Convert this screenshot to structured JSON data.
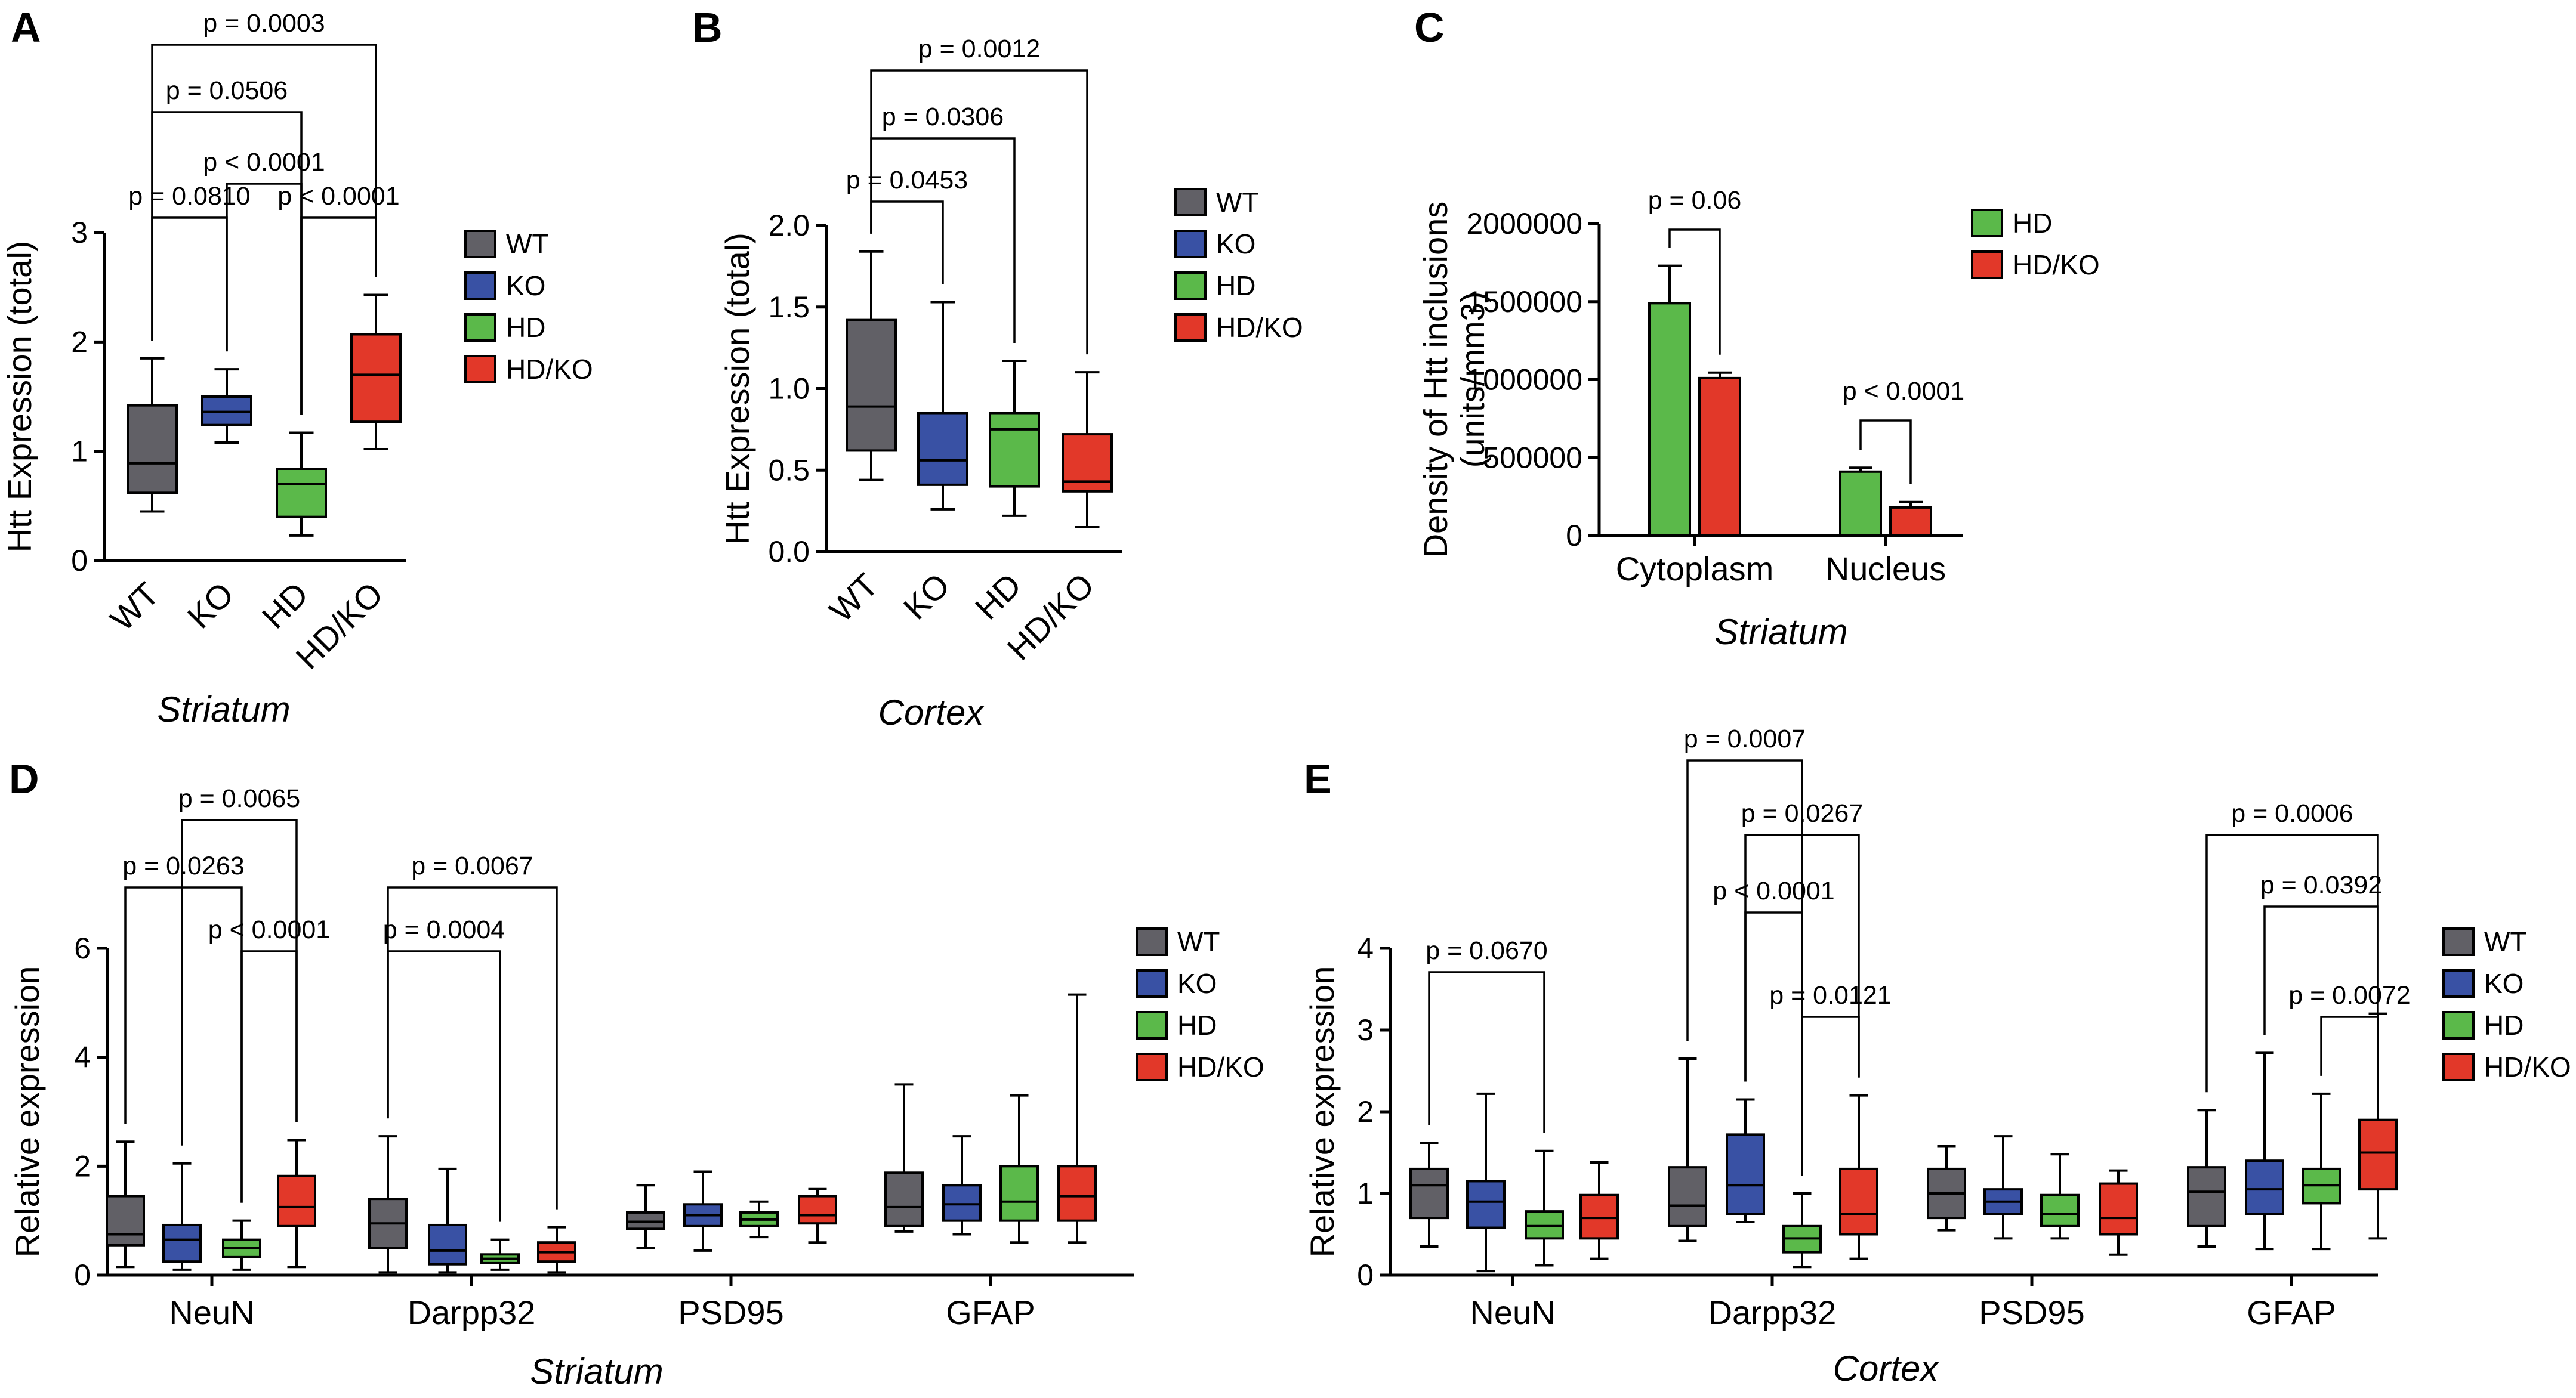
{
  "colors": {
    "WT": "#616066",
    "KO": "#3951a4",
    "HD": "#5bb94a",
    "HD/KO": "#e23829"
  },
  "legend_labels": [
    "WT",
    "KO",
    "HD",
    "HD/KO"
  ],
  "legend_labels_c": [
    "HD",
    "HD/KO"
  ],
  "chart_data": [
    {
      "panel": "A",
      "type": "box",
      "ylabel": "Htt Expression (total)",
      "subtitle": "Striatum",
      "ylim": [
        0,
        3
      ],
      "yticks": [
        0,
        1,
        2,
        3
      ],
      "ytick_labels": [
        "0",
        "1",
        "2",
        "3"
      ],
      "categories": [
        "WT",
        "KO",
        "HD",
        "HD/KO"
      ],
      "boxes": [
        {
          "group": "WT",
          "min": 0.45,
          "q1": 0.62,
          "median": 0.89,
          "q3": 1.42,
          "max": 1.85
        },
        {
          "group": "KO",
          "min": 1.08,
          "q1": 1.24,
          "median": 1.36,
          "q3": 1.5,
          "max": 1.75
        },
        {
          "group": "HD",
          "min": 0.23,
          "q1": 0.4,
          "median": 0.7,
          "q3": 0.84,
          "max": 1.17
        },
        {
          "group": "HD/KO",
          "min": 1.02,
          "q1": 1.27,
          "median": 1.7,
          "q3": 2.07,
          "max": 2.43
        }
      ],
      "comparisons": [
        {
          "a": 0,
          "b": 1,
          "p": "p = 0.0810"
        },
        {
          "a": 2,
          "b": 3,
          "p": "p < 0.0001"
        },
        {
          "a": 1,
          "b": 2,
          "p": "p < 0.0001"
        },
        {
          "a": 0,
          "b": 2,
          "p": "p = 0.0506"
        },
        {
          "a": 0,
          "b": 3,
          "p": "p = 0.0003"
        }
      ]
    },
    {
      "panel": "B",
      "type": "box",
      "ylabel": "Htt Expression (total)",
      "subtitle": "Cortex",
      "ylim": [
        0,
        2
      ],
      "yticks": [
        0,
        0.5,
        1,
        1.5,
        2
      ],
      "ytick_labels": [
        "0.0",
        "0.5",
        "1.0",
        "1.5",
        "2.0"
      ],
      "categories": [
        "WT",
        "KO",
        "HD",
        "HD/KO"
      ],
      "boxes": [
        {
          "group": "WT",
          "min": 0.44,
          "q1": 0.62,
          "median": 0.89,
          "q3": 1.42,
          "max": 1.84
        },
        {
          "group": "KO",
          "min": 0.26,
          "q1": 0.41,
          "median": 0.56,
          "q3": 0.85,
          "max": 1.53
        },
        {
          "group": "HD",
          "min": 0.22,
          "q1": 0.4,
          "median": 0.75,
          "q3": 0.85,
          "max": 1.17
        },
        {
          "group": "HD/KO",
          "min": 0.15,
          "q1": 0.37,
          "median": 0.43,
          "q3": 0.72,
          "max": 1.1
        }
      ],
      "comparisons": [
        {
          "a": 0,
          "b": 1,
          "p": "p = 0.0453"
        },
        {
          "a": 0,
          "b": 2,
          "p": "p = 0.0306"
        },
        {
          "a": 0,
          "b": 3,
          "p": "p = 0.0012"
        }
      ]
    },
    {
      "panel": "C",
      "type": "bar",
      "ylabel": "Density of Htt inclusions\n(units/mm3)",
      "subtitle": "Striatum",
      "ylim": [
        0,
        2000000
      ],
      "yticks": [
        0,
        500000,
        1000000,
        1500000,
        2000000
      ],
      "ytick_labels": [
        "0",
        "500000",
        "1000000",
        "1500000",
        "2000000"
      ],
      "categories": [
        "Cytoplasm",
        "Nucleus"
      ],
      "series": [
        {
          "name": "HD",
          "values": [
            1490000,
            410000
          ],
          "errors": [
            240000,
            25000
          ]
        },
        {
          "name": "HD/KO",
          "values": [
            1010000,
            180000
          ],
          "errors": [
            35000,
            35000
          ]
        }
      ],
      "comparisons": [
        {
          "category": 0,
          "p": "p = 0.06"
        },
        {
          "category": 1,
          "p": "p < 0.0001"
        }
      ]
    },
    {
      "panel": "D",
      "type": "box",
      "ylabel": "Relative expression",
      "subtitle": "Striatum",
      "ylim": [
        0,
        6
      ],
      "yticks": [
        0,
        2,
        4,
        6
      ],
      "ytick_labels": [
        "0",
        "2",
        "4",
        "6"
      ],
      "categories": [
        "NeuN",
        "Darpp32",
        "PSD95",
        "GFAP"
      ],
      "boxes": [
        {
          "group": "WT",
          "min": 0.15,
          "q1": 0.55,
          "median": 0.75,
          "q3": 1.45,
          "max": 2.45
        },
        {
          "group": "KO",
          "min": 0.1,
          "q1": 0.25,
          "median": 0.65,
          "q3": 0.92,
          "max": 2.05
        },
        {
          "group": "HD",
          "min": 0.1,
          "q1": 0.33,
          "median": 0.5,
          "q3": 0.65,
          "max": 1.0
        },
        {
          "group": "HD/KO",
          "min": 0.15,
          "q1": 0.9,
          "median": 1.25,
          "q3": 1.82,
          "max": 2.48
        },
        {
          "group": "WT",
          "min": 0.05,
          "q1": 0.5,
          "median": 0.95,
          "q3": 1.4,
          "max": 2.55
        },
        {
          "group": "KO",
          "min": 0.05,
          "q1": 0.2,
          "median": 0.45,
          "q3": 0.92,
          "max": 1.95
        },
        {
          "group": "HD",
          "min": 0.1,
          "q1": 0.22,
          "median": 0.3,
          "q3": 0.38,
          "max": 0.65
        },
        {
          "group": "HD/KO",
          "min": 0.05,
          "q1": 0.25,
          "median": 0.42,
          "q3": 0.6,
          "max": 0.88
        },
        {
          "group": "WT",
          "min": 0.5,
          "q1": 0.85,
          "median": 0.98,
          "q3": 1.15,
          "max": 1.65
        },
        {
          "group": "KO",
          "min": 0.45,
          "q1": 0.9,
          "median": 1.1,
          "q3": 1.3,
          "max": 1.9
        },
        {
          "group": "HD",
          "min": 0.7,
          "q1": 0.9,
          "median": 1.02,
          "q3": 1.15,
          "max": 1.35
        },
        {
          "group": "HD/KO",
          "min": 0.6,
          "q1": 0.95,
          "median": 1.1,
          "q3": 1.45,
          "max": 1.58
        },
        {
          "group": "WT",
          "min": 0.8,
          "q1": 0.9,
          "median": 1.25,
          "q3": 1.88,
          "max": 3.5
        },
        {
          "group": "KO",
          "min": 0.75,
          "q1": 1.0,
          "median": 1.3,
          "q3": 1.65,
          "max": 2.55
        },
        {
          "group": "HD",
          "min": 0.6,
          "q1": 1.0,
          "median": 1.35,
          "q3": 2.0,
          "max": 3.3
        },
        {
          "group": "HD/KO",
          "min": 0.6,
          "q1": 1.0,
          "median": 1.45,
          "q3": 2.0,
          "max": 5.15
        }
      ],
      "comparisons": [
        {
          "a": 2,
          "b": 3,
          "p": "p < 0.0001"
        },
        {
          "a": 0,
          "b": 2,
          "p": "p = 0.0263"
        },
        {
          "a": 1,
          "b": 3,
          "p": "p = 0.0065"
        },
        {
          "a": 4,
          "b": 6,
          "p": "p = 0.0004"
        },
        {
          "a": 4,
          "b": 7,
          "p": "p = 0.0067"
        }
      ]
    },
    {
      "panel": "E",
      "type": "box",
      "ylabel": "Relative expression",
      "subtitle": "Cortex",
      "ylim": [
        0,
        4
      ],
      "yticks": [
        0,
        1,
        2,
        3,
        4
      ],
      "ytick_labels": [
        "0",
        "1",
        "2",
        "3",
        "4"
      ],
      "categories": [
        "NeuN",
        "Darpp32",
        "PSD95",
        "GFAP"
      ],
      "boxes": [
        {
          "group": "WT",
          "min": 0.35,
          "q1": 0.7,
          "median": 1.1,
          "q3": 1.3,
          "max": 1.62
        },
        {
          "group": "KO",
          "min": 0.05,
          "q1": 0.58,
          "median": 0.9,
          "q3": 1.15,
          "max": 2.22
        },
        {
          "group": "HD",
          "min": 0.12,
          "q1": 0.45,
          "median": 0.6,
          "q3": 0.78,
          "max": 1.52
        },
        {
          "group": "HD/KO",
          "min": 0.2,
          "q1": 0.45,
          "median": 0.7,
          "q3": 0.98,
          "max": 1.38
        },
        {
          "group": "WT",
          "min": 0.42,
          "q1": 0.6,
          "median": 0.85,
          "q3": 1.32,
          "max": 2.65
        },
        {
          "group": "KO",
          "min": 0.65,
          "q1": 0.75,
          "median": 1.1,
          "q3": 1.72,
          "max": 2.15
        },
        {
          "group": "HD",
          "min": 0.1,
          "q1": 0.28,
          "median": 0.45,
          "q3": 0.6,
          "max": 1.0
        },
        {
          "group": "HD/KO",
          "min": 0.2,
          "q1": 0.5,
          "median": 0.75,
          "q3": 1.3,
          "max": 2.2
        },
        {
          "group": "WT",
          "min": 0.55,
          "q1": 0.7,
          "median": 1.0,
          "q3": 1.3,
          "max": 1.58
        },
        {
          "group": "KO",
          "min": 0.45,
          "q1": 0.75,
          "median": 0.9,
          "q3": 1.05,
          "max": 1.7
        },
        {
          "group": "HD",
          "min": 0.45,
          "q1": 0.6,
          "median": 0.75,
          "q3": 0.98,
          "max": 1.48
        },
        {
          "group": "HD/KO",
          "min": 0.25,
          "q1": 0.5,
          "median": 0.7,
          "q3": 1.12,
          "max": 1.28
        },
        {
          "group": "WT",
          "min": 0.35,
          "q1": 0.6,
          "median": 1.02,
          "q3": 1.32,
          "max": 2.02
        },
        {
          "group": "KO",
          "min": 0.32,
          "q1": 0.75,
          "median": 1.05,
          "q3": 1.4,
          "max": 2.72
        },
        {
          "group": "HD",
          "min": 0.32,
          "q1": 0.88,
          "median": 1.1,
          "q3": 1.3,
          "max": 2.22
        },
        {
          "group": "HD/KO",
          "min": 0.45,
          "q1": 1.05,
          "median": 1.5,
          "q3": 1.9,
          "max": 3.2
        }
      ],
      "comparisons": [
        {
          "a": 0,
          "b": 2,
          "p": "p = 0.0670"
        },
        {
          "a": 6,
          "b": 7,
          "p": "p = 0.0121"
        },
        {
          "a": 5,
          "b": 6,
          "p": "p < 0.0001"
        },
        {
          "a": 5,
          "b": 7,
          "p": "p = 0.0267"
        },
        {
          "a": 4,
          "b": 6,
          "p": "p = 0.0007"
        },
        {
          "a": 14,
          "b": 15,
          "p": "p = 0.0072"
        },
        {
          "a": 13,
          "b": 15,
          "p": "p = 0.0392"
        },
        {
          "a": 12,
          "b": 15,
          "p": "p = 0.0006"
        }
      ]
    }
  ]
}
